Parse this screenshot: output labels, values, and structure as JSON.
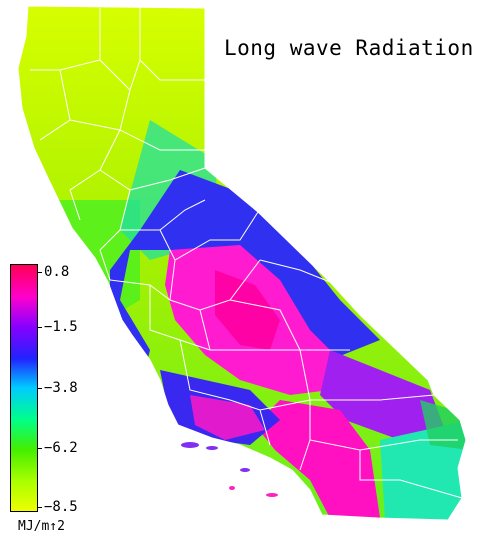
{
  "title": "Long wave Radiation",
  "legend": {
    "unit": "MJ/m↑2",
    "ticks": [
      "0.8",
      "−1.5",
      "−3.8",
      "−6.2",
      "−8.5"
    ],
    "min": -8.5,
    "max": 0.8,
    "gradient": [
      "#ff0055",
      "#ff00cc",
      "#8800ff",
      "#2222ff",
      "#00ccff",
      "#00ff88",
      "#44ee00",
      "#aaff00",
      "#eeff00"
    ]
  },
  "map": {
    "region": "California counties",
    "colors": {
      "north": "#c8f000",
      "coast": "#70f010",
      "mid": "#20e060",
      "valley_blue": "#3a2cf0",
      "hot": "#ff18c8",
      "desert_hot": "#ff00a8",
      "desert_edge": "#20e8c0",
      "boundary": "#ffffff"
    }
  }
}
